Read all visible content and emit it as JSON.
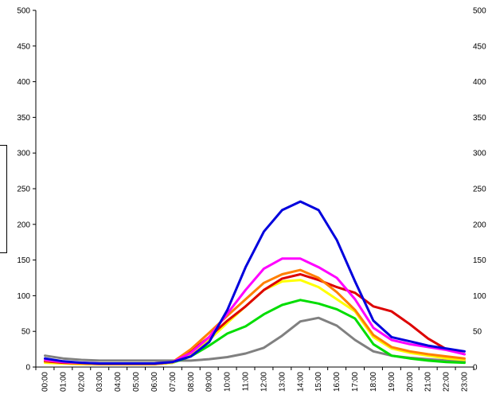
{
  "chart_data": {
    "type": "line",
    "title": "",
    "xlabel": "",
    "ylabel": "",
    "ylim": [
      0,
      500
    ],
    "yticks": [
      0,
      50,
      100,
      150,
      200,
      250,
      300,
      350,
      400,
      450,
      500
    ],
    "y2ticks": [
      0,
      50,
      100,
      150,
      200,
      250,
      300,
      350,
      400,
      450,
      500
    ],
    "grid": false,
    "categories": [
      "00:00",
      "01:00",
      "02:00",
      "03:00",
      "04:00",
      "05:00",
      "06:00",
      "07:00",
      "08:00",
      "09:00",
      "10:00",
      "11:00",
      "12:00",
      "13:00",
      "14:00",
      "15:00",
      "16:00",
      "17:00",
      "18:00",
      "19:00",
      "20:00",
      "21:00",
      "22:00",
      "23:00"
    ],
    "series": [
      {
        "color": "#0000dd",
        "values": [
          12,
          8,
          6,
          5,
          5,
          5,
          5,
          7,
          15,
          35,
          80,
          140,
          190,
          220,
          232,
          220,
          178,
          120,
          65,
          42,
          36,
          30,
          26,
          22
        ]
      },
      {
        "color": "#ff00ff",
        "values": [
          10,
          7,
          6,
          5,
          5,
          5,
          5,
          7,
          20,
          42,
          75,
          108,
          138,
          152,
          152,
          140,
          125,
          95,
          55,
          38,
          32,
          28,
          24,
          18
        ]
      },
      {
        "color": "#ff7f00",
        "values": [
          9,
          7,
          5,
          4,
          4,
          4,
          4,
          7,
          25,
          48,
          72,
          95,
          118,
          130,
          136,
          125,
          105,
          80,
          45,
          28,
          22,
          18,
          15,
          12
        ]
      },
      {
        "color": "#dd0000",
        "values": [
          8,
          6,
          5,
          4,
          4,
          4,
          4,
          7,
          22,
          42,
          65,
          85,
          108,
          124,
          130,
          122,
          112,
          104,
          85,
          78,
          60,
          40,
          25,
          18
        ]
      },
      {
        "color": "#ffff00",
        "values": [
          6,
          5,
          4,
          4,
          4,
          4,
          4,
          6,
          18,
          38,
          62,
          85,
          108,
          120,
          122,
          112,
          95,
          78,
          42,
          26,
          20,
          16,
          12,
          10
        ]
      },
      {
        "color": "#00dd00",
        "values": [
          8,
          6,
          5,
          4,
          4,
          4,
          4,
          6,
          15,
          30,
          47,
          57,
          74,
          87,
          94,
          89,
          81,
          68,
          32,
          16,
          12,
          9,
          7,
          6
        ]
      },
      {
        "color": "#808080",
        "values": [
          16,
          12,
          10,
          9,
          9,
          9,
          9,
          9,
          9,
          11,
          14,
          19,
          27,
          44,
          64,
          69,
          58,
          38,
          22,
          16,
          13,
          11,
          9,
          8
        ]
      }
    ]
  }
}
